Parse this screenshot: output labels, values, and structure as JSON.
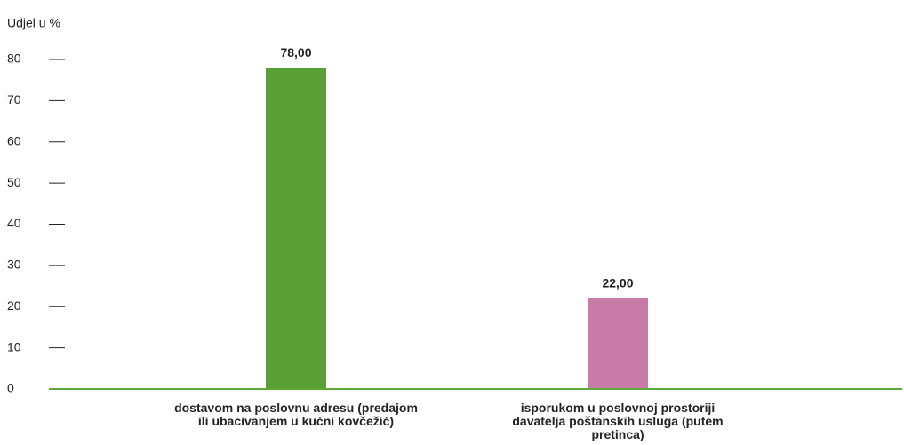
{
  "chart_data": {
    "type": "bar",
    "y_axis_label": "Udjel u %",
    "categories": [
      "dostavom na poslovnu adresu (predajom ili ubacivanjem u kućni kovčežić)",
      "isporukom u poslovnoj prostoriji davatelja poštanskih usluga (putem pretinca)"
    ],
    "values": [
      78,
      22
    ],
    "value_labels": [
      "78,00",
      "22,00"
    ],
    "colors": [
      "#5b9f37",
      "#c87ba6"
    ],
    "ylim": [
      0,
      80
    ],
    "yticks": [
      0,
      10,
      20,
      30,
      40,
      50,
      60,
      70,
      80
    ]
  }
}
